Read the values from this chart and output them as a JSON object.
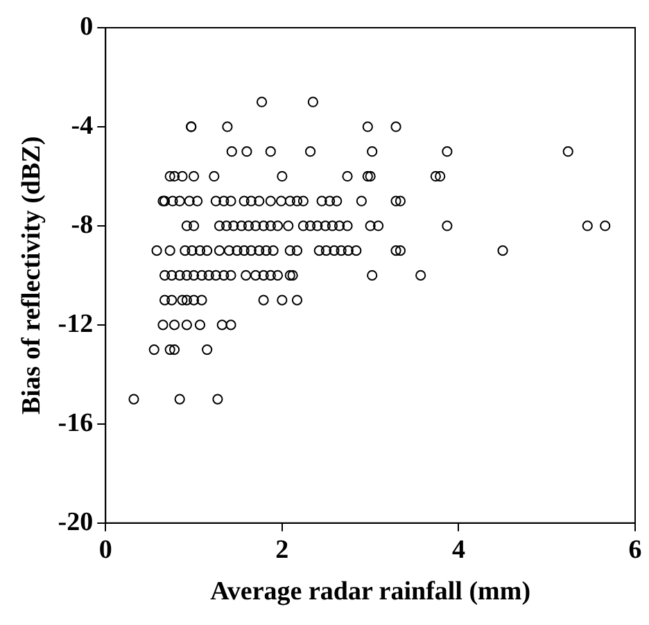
{
  "chart_data": {
    "type": "scatter",
    "xlabel": "Average radar rainfall (mm)",
    "ylabel": "Bias of reflectivity (dBZ)",
    "xlim": [
      0,
      6
    ],
    "xticks": [
      0,
      2,
      4,
      6
    ],
    "ylim": [
      -20,
      0
    ],
    "yticks": [
      -20,
      -16,
      -12,
      -8,
      -4,
      0
    ],
    "grid": false,
    "legend": false,
    "marker": "circle",
    "series": [
      {
        "color": "#000000",
        "x": [
          1.77,
          2.35,
          0.97,
          0.97,
          1.38,
          2.97,
          3.29,
          1.43,
          1.6,
          1.87,
          2.32,
          3.02,
          3.87,
          5.24,
          0.73,
          0.78,
          0.87,
          1.0,
          1.23,
          2.0,
          2.74,
          2.97,
          3.0,
          3.74,
          3.79,
          0.65,
          0.67,
          0.76,
          0.84,
          0.95,
          1.04,
          1.25,
          1.34,
          1.42,
          1.57,
          1.65,
          1.74,
          1.87,
          1.99,
          2.09,
          2.17,
          2.24,
          2.45,
          2.54,
          2.62,
          2.9,
          3.29,
          3.34,
          0.92,
          1.0,
          1.29,
          1.37,
          1.45,
          1.54,
          1.62,
          1.7,
          1.79,
          1.87,
          1.95,
          2.07,
          2.24,
          2.32,
          2.4,
          2.49,
          2.57,
          2.65,
          2.74,
          3.0,
          3.09,
          3.87,
          5.46,
          5.66,
          0.58,
          0.73,
          0.9,
          0.98,
          1.07,
          1.15,
          1.29,
          1.4,
          1.49,
          1.57,
          1.65,
          1.74,
          1.82,
          1.9,
          2.09,
          2.17,
          2.42,
          2.5,
          2.59,
          2.67,
          2.75,
          2.84,
          3.29,
          3.34,
          4.5,
          0.67,
          0.75,
          0.84,
          0.92,
          1.0,
          1.09,
          1.17,
          1.25,
          1.34,
          1.42,
          1.59,
          1.7,
          1.79,
          1.87,
          1.95,
          2.09,
          2.12,
          3.02,
          3.57,
          0.67,
          0.75,
          0.87,
          0.92,
          1.0,
          1.09,
          1.79,
          2.0,
          2.17,
          0.65,
          0.78,
          0.92,
          1.07,
          1.32,
          1.42,
          0.55,
          0.73,
          0.78,
          1.15,
          0.32,
          0.84,
          1.27
        ],
        "values": [
          -3,
          -3,
          -4,
          -4,
          -4,
          -4,
          -4,
          -5,
          -5,
          -5,
          -5,
          -5,
          -5,
          -5,
          -6,
          -6,
          -6,
          -6,
          -6,
          -6,
          -6,
          -6,
          -6,
          -6,
          -6,
          -7,
          -7,
          -7,
          -7,
          -7,
          -7,
          -7,
          -7,
          -7,
          -7,
          -7,
          -7,
          -7,
          -7,
          -7,
          -7,
          -7,
          -7,
          -7,
          -7,
          -7,
          -7,
          -7,
          -8,
          -8,
          -8,
          -8,
          -8,
          -8,
          -8,
          -8,
          -8,
          -8,
          -8,
          -8,
          -8,
          -8,
          -8,
          -8,
          -8,
          -8,
          -8,
          -8,
          -8,
          -8,
          -8,
          -8,
          -9,
          -9,
          -9,
          -9,
          -9,
          -9,
          -9,
          -9,
          -9,
          -9,
          -9,
          -9,
          -9,
          -9,
          -9,
          -9,
          -9,
          -9,
          -9,
          -9,
          -9,
          -9,
          -9,
          -9,
          -9,
          -10,
          -10,
          -10,
          -10,
          -10,
          -10,
          -10,
          -10,
          -10,
          -10,
          -10,
          -10,
          -10,
          -10,
          -10,
          -10,
          -10,
          -10,
          -10,
          -11,
          -11,
          -11,
          -11,
          -11,
          -11,
          -11,
          -11,
          -11,
          -12,
          -12,
          -12,
          -12,
          -12,
          -12,
          -13,
          -13,
          -13,
          -13,
          -15,
          -15,
          -15
        ]
      }
    ]
  }
}
